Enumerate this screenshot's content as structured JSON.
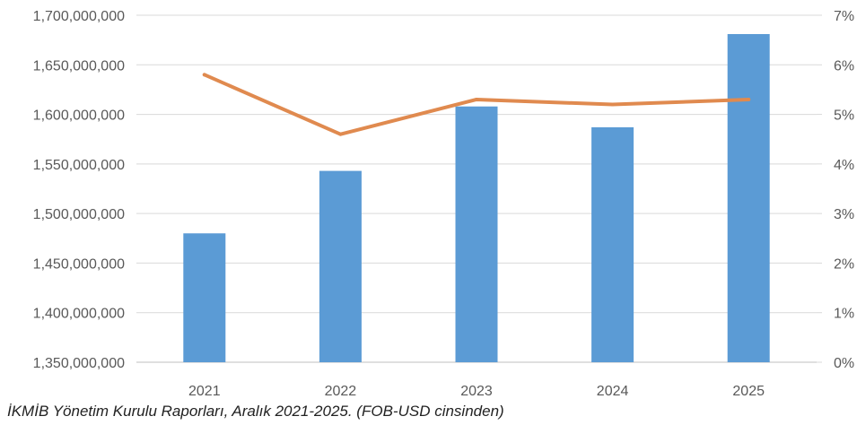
{
  "colors": {
    "bar": "#5b9bd5",
    "line": "#e08a4f",
    "grid": "#d9d9d9",
    "text": "#595959"
  },
  "source_note": "İKMİB Yönetim Kurulu Raporları, Aralık 2021-2025. (FOB-USD cinsinden)",
  "chart_data": {
    "type": "bar",
    "categories": [
      "2021",
      "2022",
      "2023",
      "2024",
      "2025"
    ],
    "series": [
      {
        "type": "bar",
        "axis": "left",
        "values": [
          1480000000,
          1543000000,
          1608000000,
          1587000000,
          1681000000
        ]
      },
      {
        "type": "line",
        "axis": "right",
        "values": [
          5.8,
          4.6,
          5.3,
          5.2,
          5.3
        ]
      }
    ],
    "y_left": {
      "ylim": [
        1350000000,
        1700000000
      ],
      "tick_labels": [
        "1,350,000,000",
        "1,400,000,000",
        "1,450,000,000",
        "1,500,000,000",
        "1,550,000,000",
        "1,600,000,000",
        "1,650,000,000",
        "1,700,000,000"
      ]
    },
    "y_right": {
      "ylim": [
        0,
        7
      ],
      "tick_labels": [
        "0%",
        "1%",
        "2%",
        "3%",
        "4%",
        "5%",
        "6%",
        "7%"
      ]
    },
    "grid": true,
    "legend": "none"
  }
}
